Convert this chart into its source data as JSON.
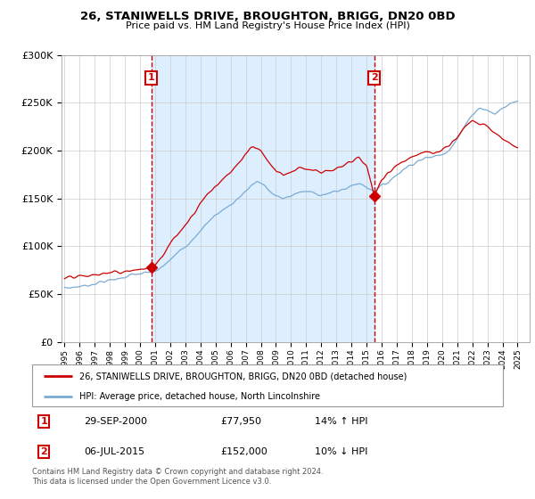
{
  "title": "26, STANIWELLS DRIVE, BROUGHTON, BRIGG, DN20 0BD",
  "subtitle": "Price paid vs. HM Land Registry's House Price Index (HPI)",
  "legend_line1": "26, STANIWELLS DRIVE, BROUGHTON, BRIGG, DN20 0BD (detached house)",
  "legend_line2": "HPI: Average price, detached house, North Lincolnshire",
  "transaction1_date": "29-SEP-2000",
  "transaction1_price": "£77,950",
  "transaction1_hpi": "14% ↑ HPI",
  "transaction2_date": "06-JUL-2015",
  "transaction2_price": "£152,000",
  "transaction2_hpi": "10% ↓ HPI",
  "footer": "Contains HM Land Registry data © Crown copyright and database right 2024.\nThis data is licensed under the Open Government Licence v3.0.",
  "red_color": "#cc0000",
  "blue_color": "#7aabd4",
  "shade_color": "#ddeeff",
  "ylim": [
    0,
    300000
  ],
  "yticks": [
    0,
    50000,
    100000,
    150000,
    200000,
    250000,
    300000
  ],
  "transaction1_x": 2000.75,
  "transaction2_x": 2015.5,
  "xlim_left": 1994.8,
  "xlim_right": 2025.8
}
